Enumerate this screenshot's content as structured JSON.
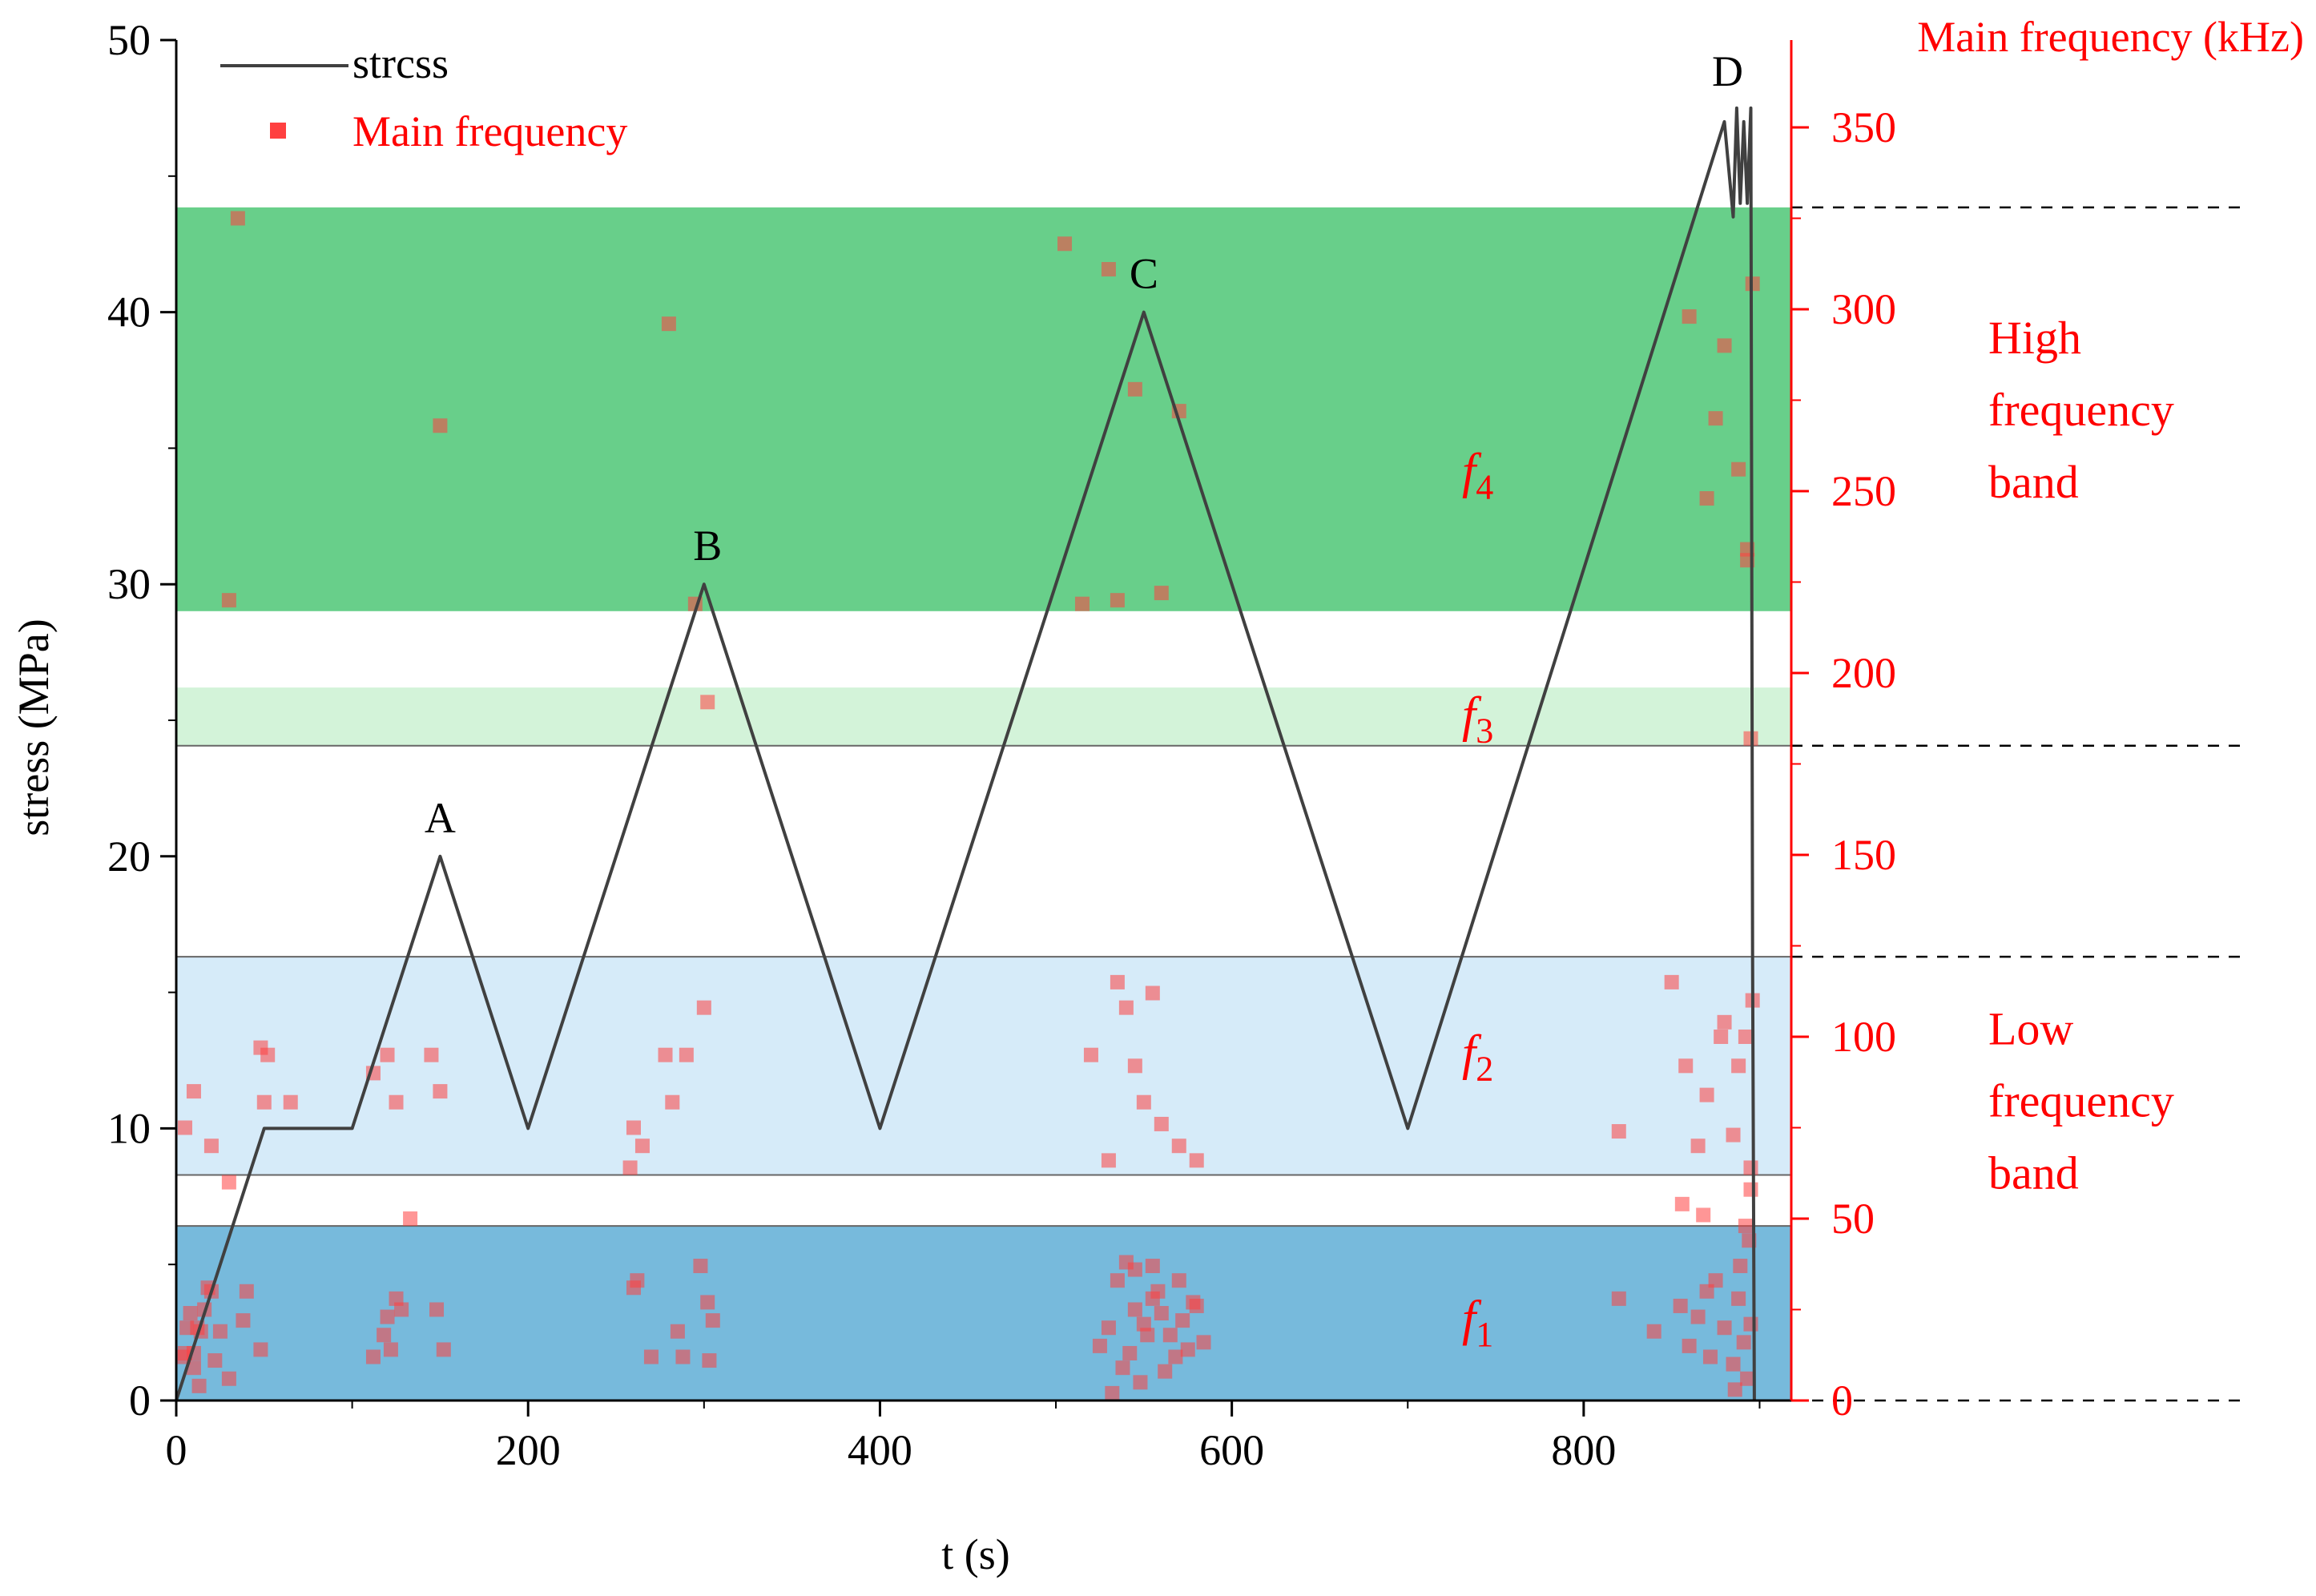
{
  "chart_data": {
    "type": "line",
    "title": "",
    "xlabel": "t (s)",
    "ylabel": "stress  (MPa)",
    "y2label": "Main frequency (kHz)",
    "xlim": [
      0,
      918
    ],
    "ylim": [
      0,
      50
    ],
    "y2lim": [
      0,
      374
    ],
    "xticks": [
      "0",
      "200",
      "400",
      "600",
      "800"
    ],
    "yticks": [
      "0",
      "10",
      "20",
      "30",
      "40",
      "50"
    ],
    "y2ticks": [
      "0",
      "50",
      "100",
      "150",
      "200",
      "250",
      "300",
      "350"
    ],
    "legend": {
      "position": "top-left",
      "items": [
        {
          "label": "strcss",
          "style": "line",
          "color": "#404040"
        },
        {
          "label": "Main frequency",
          "style": "square",
          "color": "#ff4040"
        }
      ]
    },
    "series": [
      {
        "name": "strcss",
        "axis": "left",
        "color": "#404040",
        "points": [
          [
            0,
            0
          ],
          [
            50,
            10
          ],
          [
            100,
            10
          ],
          [
            150,
            20
          ],
          [
            200,
            10
          ],
          [
            300,
            30
          ],
          [
            400,
            10
          ],
          [
            550,
            40
          ],
          [
            700,
            10
          ],
          [
            880,
            47
          ],
          [
            885,
            43.5
          ],
          [
            887,
            47.5
          ],
          [
            889,
            44
          ],
          [
            891,
            47
          ],
          [
            893,
            44
          ],
          [
            895,
            47.5
          ],
          [
            896,
            16.3
          ],
          [
            897,
            0
          ]
        ]
      },
      {
        "name": "Main frequency",
        "axis": "right",
        "type": "scatter",
        "color": "#ff4040",
        "points": [
          [
            5,
            13
          ],
          [
            10,
            9
          ],
          [
            16,
            25
          ],
          [
            8,
            24
          ],
          [
            12,
            20
          ],
          [
            6,
            20
          ],
          [
            14,
            19
          ],
          [
            4,
            12
          ],
          [
            18,
            31
          ],
          [
            25,
            19
          ],
          [
            22,
            11
          ],
          [
            38,
            22
          ],
          [
            48,
            14
          ],
          [
            40,
            30
          ],
          [
            30,
            6
          ],
          [
            10,
            13
          ],
          [
            13,
            4
          ],
          [
            20,
            30
          ],
          [
            120,
            23
          ],
          [
            122,
            14
          ],
          [
            125,
            28
          ],
          [
            118,
            18
          ],
          [
            128,
            25
          ],
          [
            112,
            12
          ],
          [
            148,
            25
          ],
          [
            152,
            14
          ],
          [
            260,
            31
          ],
          [
            262,
            33
          ],
          [
            270,
            12
          ],
          [
            285,
            19
          ],
          [
            288,
            12
          ],
          [
            298,
            37
          ],
          [
            305,
            22
          ],
          [
            302,
            27
          ],
          [
            303,
            11
          ],
          [
            525,
            15
          ],
          [
            530,
            20
          ],
          [
            535,
            33
          ],
          [
            540,
            38
          ],
          [
            545,
            25
          ],
          [
            550,
            21
          ],
          [
            555,
            28
          ],
          [
            560,
            24
          ],
          [
            565,
            18
          ],
          [
            570,
            33
          ],
          [
            575,
            14
          ],
          [
            580,
            26
          ],
          [
            532,
            2
          ],
          [
            538,
            9
          ],
          [
            542,
            13
          ],
          [
            548,
            5
          ],
          [
            552,
            18
          ],
          [
            558,
            30
          ],
          [
            562,
            8
          ],
          [
            568,
            12
          ],
          [
            572,
            22
          ],
          [
            578,
            27
          ],
          [
            584,
            16
          ],
          [
            545,
            36
          ],
          [
            555,
            37
          ],
          [
            820,
            28
          ],
          [
            840,
            19
          ],
          [
            855,
            26
          ],
          [
            860,
            15
          ],
          [
            865,
            23
          ],
          [
            870,
            30
          ],
          [
            875,
            33
          ],
          [
            880,
            20
          ],
          [
            885,
            10
          ],
          [
            888,
            28
          ],
          [
            891,
            16
          ],
          [
            893,
            6
          ],
          [
            895,
            21
          ],
          [
            872,
            12
          ],
          [
            886,
            3
          ],
          [
            889,
            37
          ],
          [
            5,
            75
          ],
          [
            10,
            85
          ],
          [
            20,
            70
          ],
          [
            30,
            60
          ],
          [
            48,
            97
          ],
          [
            50,
            82
          ],
          [
            52,
            95
          ],
          [
            65,
            82
          ],
          [
            112,
            90
          ],
          [
            120,
            95
          ],
          [
            125,
            82
          ],
          [
            145,
            95
          ],
          [
            150,
            85
          ],
          [
            260,
            75
          ],
          [
            265,
            70
          ],
          [
            278,
            95
          ],
          [
            282,
            82
          ],
          [
            290,
            95
          ],
          [
            300,
            108
          ],
          [
            258,
            64
          ],
          [
            520,
            95
          ],
          [
            540,
            108
          ],
          [
            550,
            82
          ],
          [
            560,
            76
          ],
          [
            570,
            70
          ],
          [
            580,
            66
          ],
          [
            535,
            115
          ],
          [
            555,
            112
          ],
          [
            545,
            92
          ],
          [
            530,
            66
          ],
          [
            850,
            115
          ],
          [
            858,
            92
          ],
          [
            870,
            84
          ],
          [
            880,
            104
          ],
          [
            885,
            73
          ],
          [
            892,
            100
          ],
          [
            896,
            110
          ],
          [
            895,
            64
          ],
          [
            888,
            92
          ],
          [
            820,
            74
          ],
          [
            865,
            70
          ],
          [
            878,
            100
          ],
          [
            30,
            220
          ],
          [
            150,
            268
          ],
          [
            280,
            296
          ],
          [
            295,
            219
          ],
          [
            505,
            318
          ],
          [
            530,
            311
          ],
          [
            545,
            278
          ],
          [
            560,
            222
          ],
          [
            570,
            272
          ],
          [
            860,
            298
          ],
          [
            870,
            248
          ],
          [
            880,
            290
          ],
          [
            888,
            256
          ],
          [
            893,
            231
          ],
          [
            896,
            307
          ],
          [
            35,
            325
          ],
          [
            515,
            219
          ],
          [
            535,
            220
          ],
          [
            875,
            270
          ],
          [
            893,
            234
          ],
          [
            302,
            192
          ],
          [
            895,
            182
          ],
          [
            133,
            50
          ],
          [
            856,
            54
          ],
          [
            868,
            51
          ],
          [
            892,
            48
          ],
          [
            895,
            58
          ],
          [
            894,
            44
          ]
        ]
      }
    ],
    "bands": [
      {
        "label": "f₄",
        "main": "f",
        "sub": "4",
        "from": 217,
        "to": 328,
        "color": "#2ebd5d",
        "opacity": 0.72
      },
      {
        "label": "f₃",
        "main": "f",
        "sub": "3",
        "from": 180,
        "to": 196,
        "color": "#a8e8b4",
        "opacity": 0.5
      },
      {
        "label": "f₂",
        "main": "f",
        "sub": "2",
        "from": 62,
        "to": 122,
        "color": "#cfe8f8",
        "opacity": 0.85
      },
      {
        "label": "f₁",
        "main": "f",
        "sub": "1",
        "from": 0,
        "to": 48,
        "color": "#4aa3d0",
        "opacity": 0.75
      }
    ],
    "band_groups": [
      {
        "lines": [
          "High",
          "frequency",
          "band"
        ],
        "center": 272
      },
      {
        "lines": [
          "Low",
          "frequency",
          "band"
        ],
        "center": 82
      }
    ],
    "annotations": [
      {
        "text": "A",
        "x": 150,
        "y": 20
      },
      {
        "text": "B",
        "x": 302,
        "y": 30
      },
      {
        "text": "C",
        "x": 550,
        "y": 40
      },
      {
        "text": "D",
        "x": 890,
        "y": 47.5
      }
    ],
    "grid": false
  }
}
